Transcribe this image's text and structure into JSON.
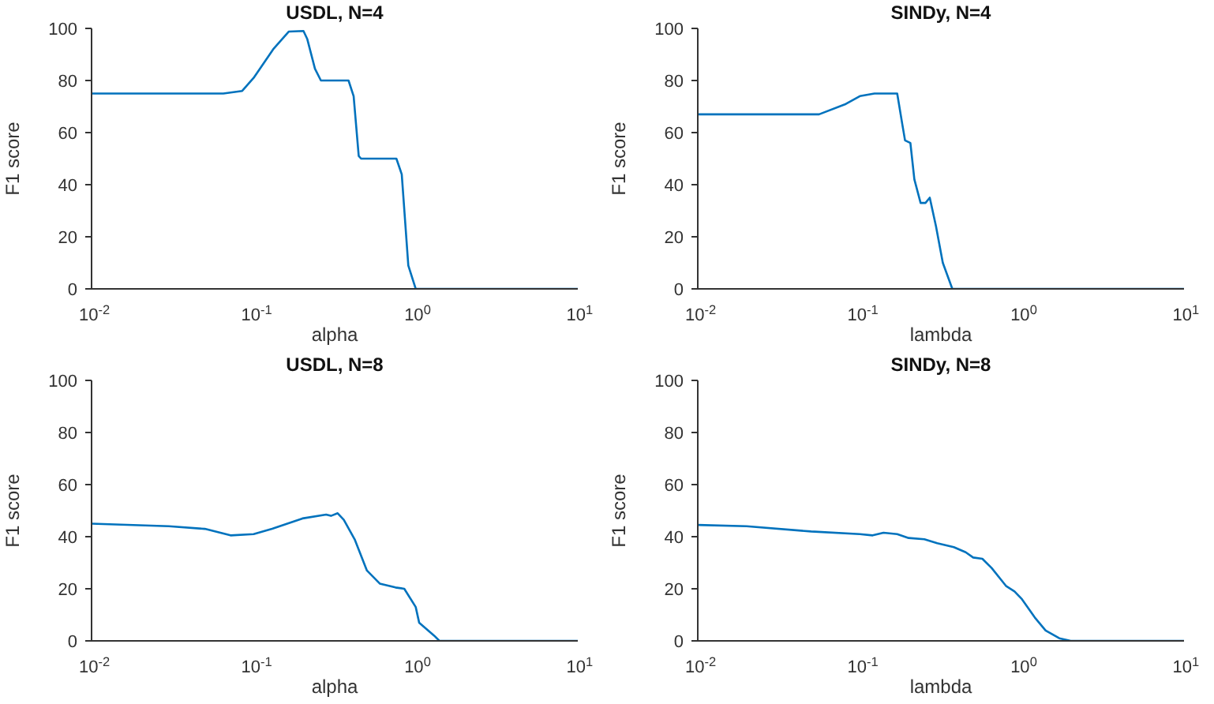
{
  "chart_data": [
    {
      "type": "line",
      "title": "USDL, N=4",
      "xlabel": "alpha",
      "ylabel": "F1 score",
      "log": "x",
      "xlim": [
        0.01,
        10
      ],
      "xticks": [
        {
          "value": 0.01,
          "label": "10$^{-2}$"
        },
        {
          "value": 0.1,
          "label": "10$^{-1}$"
        },
        {
          "value": 1,
          "label": "10$^{0}$"
        },
        {
          "value": 10,
          "label": "10$^{1}$"
        }
      ],
      "ylim": [
        0,
        100
      ],
      "yticks": [
        0,
        20,
        40,
        60,
        80,
        100
      ],
      "grid": false,
      "legend": false,
      "series": [
        {
          "color": "#0072bd",
          "x": [
            0.01,
            0.065,
            0.085,
            0.1,
            0.132,
            0.165,
            0.203,
            0.214,
            0.239,
            0.26,
            0.385,
            0.414,
            0.445,
            0.46,
            0.76,
            0.82,
            0.9,
            1.0,
            10
          ],
          "values": [
            75,
            75,
            76,
            81,
            92,
            98.8,
            99,
            96,
            84.5,
            80,
            80,
            74,
            51,
            50,
            50,
            44,
            9,
            0,
            0
          ]
        }
      ]
    },
    {
      "type": "line",
      "title": "SINDy, N=4",
      "xlabel": "lambda",
      "ylabel": "F1 score",
      "log": "x",
      "xlim": [
        0.01,
        10
      ],
      "xticks": [
        {
          "value": 0.01,
          "label": "10$^{-2}$"
        },
        {
          "value": 0.1,
          "label": "10$^{-1}$"
        },
        {
          "value": 1,
          "label": "10$^{0}$"
        },
        {
          "value": 10,
          "label": "10$^{1}$"
        }
      ],
      "ylim": [
        0,
        100
      ],
      "yticks": [
        0,
        20,
        40,
        60,
        80,
        100
      ],
      "grid": false,
      "legend": false,
      "series": [
        {
          "color": "#0072bd",
          "x": [
            0.01,
            0.056,
            0.082,
            0.1,
            0.123,
            0.17,
            0.183,
            0.19,
            0.205,
            0.217,
            0.237,
            0.254,
            0.27,
            0.295,
            0.325,
            0.372,
            10
          ],
          "values": [
            67,
            67,
            71,
            74,
            75,
            75,
            63,
            57,
            56,
            42,
            33,
            33,
            35,
            24,
            10,
            0,
            0
          ]
        }
      ]
    },
    {
      "type": "line",
      "title": "USDL, N=8",
      "xlabel": "alpha",
      "ylabel": "F1 score",
      "log": "x",
      "xlim": [
        0.01,
        10
      ],
      "xticks": [
        {
          "value": 0.01,
          "label": "10$^{-2}$"
        },
        {
          "value": 0.1,
          "label": "10$^{-1}$"
        },
        {
          "value": 1,
          "label": "10$^{0}$"
        },
        {
          "value": 10,
          "label": "10$^{1}$"
        }
      ],
      "ylim": [
        0,
        100
      ],
      "yticks": [
        0,
        20,
        40,
        60,
        80,
        100
      ],
      "grid": false,
      "legend": false,
      "series": [
        {
          "color": "#0072bd",
          "x": [
            0.01,
            0.03,
            0.05,
            0.072,
            0.1,
            0.13,
            0.2,
            0.28,
            0.3,
            0.33,
            0.36,
            0.42,
            0.5,
            0.6,
            0.75,
            0.85,
            1.0,
            1.05,
            1.3,
            1.4,
            10
          ],
          "values": [
            45,
            44,
            43,
            40.5,
            41,
            43,
            47,
            48.5,
            48,
            49,
            46.5,
            39,
            27,
            22,
            20.5,
            20,
            13,
            7,
            2,
            0,
            0
          ]
        }
      ]
    },
    {
      "type": "line",
      "title": "SINDy, N=8",
      "xlabel": "lambda",
      "ylabel": "F1 score",
      "log": "x",
      "xlim": [
        0.01,
        10
      ],
      "xticks": [
        {
          "value": 0.01,
          "label": "10$^{-2}$"
        },
        {
          "value": 0.1,
          "label": "10$^{-1}$"
        },
        {
          "value": 1,
          "label": "10$^{0}$"
        },
        {
          "value": 10,
          "label": "10$^{1}$"
        }
      ],
      "ylim": [
        0,
        100
      ],
      "yticks": [
        0,
        20,
        40,
        60,
        80,
        100
      ],
      "grid": false,
      "legend": false,
      "series": [
        {
          "color": "#0072bd",
          "x": [
            0.01,
            0.02,
            0.05,
            0.1,
            0.12,
            0.14,
            0.17,
            0.2,
            0.25,
            0.3,
            0.38,
            0.45,
            0.5,
            0.57,
            0.65,
            0.8,
            0.9,
            1.0,
            1.2,
            1.4,
            1.7,
            2.0,
            10
          ],
          "values": [
            44.5,
            44,
            42,
            41,
            40.5,
            41.5,
            41,
            39.5,
            39,
            37.5,
            36,
            34,
            32,
            31.5,
            28,
            21,
            19,
            16,
            9,
            4,
            1,
            0,
            0
          ]
        }
      ]
    }
  ]
}
